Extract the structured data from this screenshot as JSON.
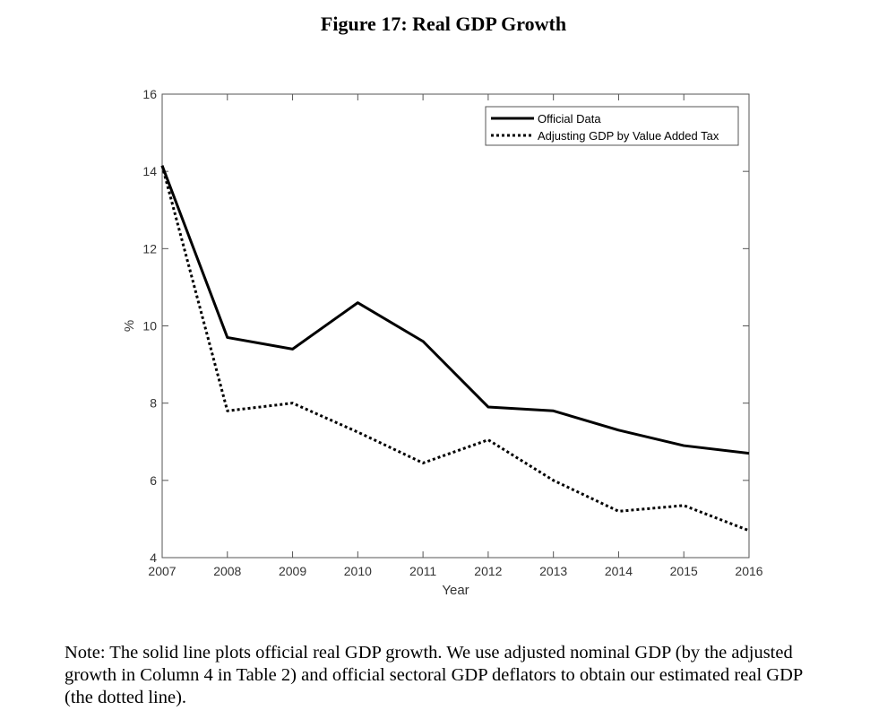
{
  "figure": {
    "title": "Figure 17: Real GDP Growth",
    "note": "Note: The solid line plots official real GDP growth. We use adjusted nominal GDP (by the adjusted growth in Column 4 in Table 2) and official sectoral GDP deflators to obtain our estimated real GDP (the dotted line)."
  },
  "chart_data": {
    "type": "line",
    "title": "Figure 17: Real GDP Growth",
    "xlabel": "Year",
    "ylabel": "%",
    "x": [
      2007,
      2008,
      2009,
      2010,
      2011,
      2012,
      2013,
      2014,
      2015,
      2016
    ],
    "xlim": [
      2007,
      2016
    ],
    "ylim": [
      4,
      16
    ],
    "xticks": [
      "2007",
      "2008",
      "2009",
      "2010",
      "2011",
      "2012",
      "2013",
      "2014",
      "2015",
      "2016"
    ],
    "yticks": [
      "4",
      "6",
      "8",
      "10",
      "12",
      "14",
      "16"
    ],
    "grid": false,
    "legend_position": "top-right",
    "series": [
      {
        "name": "Official Data",
        "style": "solid",
        "color": "#000000",
        "values": [
          14.15,
          9.7,
          9.4,
          10.6,
          9.6,
          7.9,
          7.8,
          7.3,
          6.9,
          6.7
        ]
      },
      {
        "name": "Adjusting GDP by Value Added Tax",
        "style": "dotted",
        "color": "#000000",
        "values": [
          14.15,
          7.8,
          8.0,
          7.25,
          6.45,
          7.05,
          6.0,
          5.2,
          5.35,
          4.7
        ]
      }
    ]
  }
}
